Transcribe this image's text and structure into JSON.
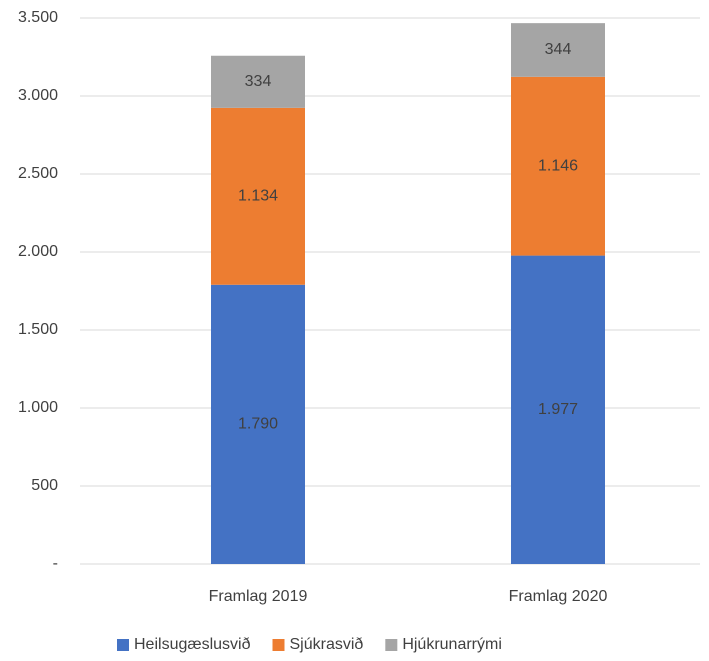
{
  "chart_data": {
    "type": "stacked_bar",
    "categories": [
      "Framlag 2019",
      "Framlag 2020"
    ],
    "series": [
      {
        "name": "Heilsugæslusvið",
        "color": "#4472c4",
        "values": [
          1790,
          1977
        ],
        "value_labels": [
          "1.790",
          "1.977"
        ]
      },
      {
        "name": "Sjúkrasvið",
        "color": "#ed7d31",
        "values": [
          1134,
          1146
        ],
        "value_labels": [
          "1.134",
          "1.146"
        ]
      },
      {
        "name": "Hjúkrunarrými",
        "color": "#a5a5a5",
        "values": [
          334,
          344
        ],
        "value_labels": [
          "334",
          "344"
        ]
      }
    ],
    "ylim": [
      0,
      3500
    ],
    "yticks": [
      {
        "value": 0,
        "label": "-"
      },
      500,
      {
        "value": 1000,
        "label": "1.000"
      },
      {
        "value": 1500,
        "label": "1.500"
      },
      {
        "value": 2000,
        "label": "2.000"
      },
      {
        "value": 2500,
        "label": "2.500"
      },
      {
        "value": 3000,
        "label": "3.000"
      },
      {
        "value": 3500,
        "label": "3.500"
      }
    ],
    "grid": true,
    "legend": "bottom"
  }
}
